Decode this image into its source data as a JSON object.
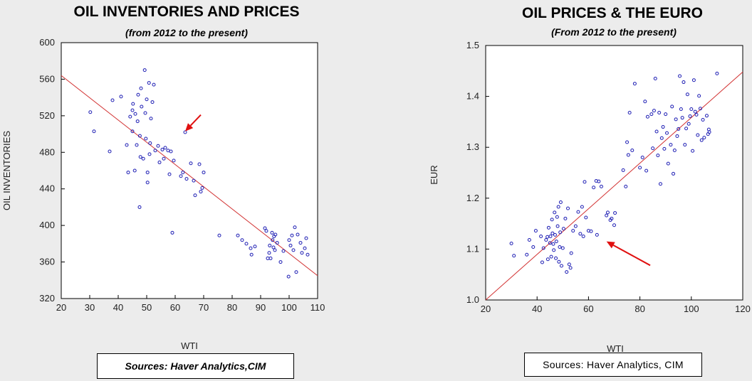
{
  "chart_data": [
    {
      "type": "scatter",
      "title": "OIL INVENTORIES AND PRICES",
      "subtitle": "(from 2012 to the present)",
      "xlabel": "WTI",
      "ylabel": "OIL INVENTORIES",
      "xlim": [
        20,
        110
      ],
      "ylim": [
        320,
        600
      ],
      "xticks": [
        "20",
        "30",
        "40",
        "50",
        "60",
        "70",
        "80",
        "90",
        "100",
        "110"
      ],
      "yticks": [
        "320",
        "360",
        "400",
        "440",
        "480",
        "520",
        "560",
        "600"
      ],
      "grid": false,
      "marker_color": "#1e1eb4",
      "fit_color": "#d23232",
      "arrow_color": "#e01010",
      "fit_line": [
        [
          20,
          564
        ],
        [
          110,
          345
        ]
      ],
      "arrow": {
        "from": [
          69,
          521
        ],
        "to": [
          63.5,
          503
        ]
      },
      "source": "Sources:  Haver Analytics,CIM",
      "points": [
        [
          30.2,
          524
        ],
        [
          31.5,
          503
        ],
        [
          37,
          481
        ],
        [
          38,
          537
        ],
        [
          41,
          541
        ],
        [
          43,
          488
        ],
        [
          43.5,
          458
        ],
        [
          44.2,
          519
        ],
        [
          45,
          526
        ],
        [
          45,
          503
        ],
        [
          45.2,
          533
        ],
        [
          45.8,
          460
        ],
        [
          46,
          522
        ],
        [
          46.5,
          488
        ],
        [
          46.8,
          514
        ],
        [
          47,
          543
        ],
        [
          47.5,
          420
        ],
        [
          47.6,
          498
        ],
        [
          47.8,
          475
        ],
        [
          48,
          550
        ],
        [
          48.2,
          530
        ],
        [
          48.8,
          473
        ],
        [
          49.3,
          570
        ],
        [
          49.5,
          523
        ],
        [
          49.7,
          495
        ],
        [
          50,
          538
        ],
        [
          50.3,
          458
        ],
        [
          50.3,
          447
        ],
        [
          50.8,
          556
        ],
        [
          51,
          478
        ],
        [
          51.2,
          490
        ],
        [
          51.5,
          517
        ],
        [
          52,
          535
        ],
        [
          52.5,
          554
        ],
        [
          53,
          482
        ],
        [
          54,
          487
        ],
        [
          54.5,
          469
        ],
        [
          55.5,
          483
        ],
        [
          56,
          473
        ],
        [
          56.5,
          485
        ],
        [
          57.5,
          482
        ],
        [
          58,
          456
        ],
        [
          58.5,
          481
        ],
        [
          59,
          392
        ],
        [
          59.5,
          471
        ],
        [
          62,
          454
        ],
        [
          62.7,
          458
        ],
        [
          63.5,
          502
        ],
        [
          64,
          451
        ],
        [
          65.5,
          468
        ],
        [
          66.5,
          449
        ],
        [
          67,
          433
        ],
        [
          68.5,
          467
        ],
        [
          69,
          437
        ],
        [
          69.5,
          441
        ],
        [
          70,
          458
        ],
        [
          75.5,
          389
        ],
        [
          82,
          389
        ],
        [
          83.5,
          384
        ],
        [
          85,
          380
        ],
        [
          86.5,
          375
        ],
        [
          86.8,
          368
        ],
        [
          88,
          377
        ],
        [
          91.5,
          397
        ],
        [
          92,
          394
        ],
        [
          92.5,
          364
        ],
        [
          93,
          370
        ],
        [
          93.2,
          378
        ],
        [
          93.5,
          364
        ],
        [
          94,
          392
        ],
        [
          94.2,
          384
        ],
        [
          94.5,
          376
        ],
        [
          94.7,
          388
        ],
        [
          95,
          373
        ],
        [
          95.2,
          390
        ],
        [
          95.8,
          381
        ],
        [
          97,
          360
        ],
        [
          98,
          372
        ],
        [
          99.8,
          344
        ],
        [
          100,
          384
        ],
        [
          100.5,
          378
        ],
        [
          101,
          389
        ],
        [
          101.5,
          373
        ],
        [
          102,
          398
        ],
        [
          102.5,
          349
        ],
        [
          103,
          390
        ],
        [
          104,
          381
        ],
        [
          104.5,
          370
        ],
        [
          105.5,
          375
        ],
        [
          106,
          386
        ],
        [
          106.5,
          368
        ]
      ]
    },
    {
      "type": "scatter",
      "title": "OIL PRICES & THE EURO",
      "subtitle": "(From 2012 to the present)",
      "xlabel": "WTI",
      "ylabel": "EUR",
      "xlim": [
        20,
        120
      ],
      "ylim": [
        1.0,
        1.5
      ],
      "xticks": [
        "20",
        "40",
        "60",
        "80",
        "100",
        "120"
      ],
      "yticks": [
        "1.0",
        "1.1",
        "1.2",
        "1.3",
        "1.4",
        "1.5"
      ],
      "grid": false,
      "marker_color": "#1e1eb4",
      "fit_color": "#d23232",
      "arrow_color": "#e01010",
      "fit_line": [
        [
          20,
          1.0
        ],
        [
          120,
          1.448
        ]
      ],
      "arrow": {
        "from": [
          84,
          1.068
        ],
        "to": [
          67,
          1.115
        ]
      },
      "source": "Sources:  Haver Analytics, CIM",
      "points": [
        [
          30,
          1.111
        ],
        [
          31,
          1.087
        ],
        [
          36,
          1.089
        ],
        [
          37,
          1.118
        ],
        [
          38.5,
          1.104
        ],
        [
          39.5,
          1.136
        ],
        [
          41.5,
          1.125
        ],
        [
          42,
          1.074
        ],
        [
          42.5,
          1.102
        ],
        [
          43.5,
          1.118
        ],
        [
          44,
          1.124
        ],
        [
          44.2,
          1.08
        ],
        [
          44.5,
          1.142
        ],
        [
          45,
          1.112
        ],
        [
          45.2,
          1.125
        ],
        [
          45.5,
          1.085
        ],
        [
          45.8,
          1.158
        ],
        [
          46,
          1.131
        ],
        [
          46.3,
          1.11
        ],
        [
          46.5,
          1.098
        ],
        [
          46.8,
          1.172
        ],
        [
          47,
          1.128
        ],
        [
          47.3,
          1.082
        ],
        [
          47.5,
          1.115
        ],
        [
          47.8,
          1.163
        ],
        [
          48,
          1.145
        ],
        [
          48.3,
          1.183
        ],
        [
          48.5,
          1.075
        ],
        [
          48.8,
          1.104
        ],
        [
          49,
          1.133
        ],
        [
          49.2,
          1.192
        ],
        [
          49.5,
          1.067
        ],
        [
          50,
          1.102
        ],
        [
          50.3,
          1.14
        ],
        [
          51,
          1.16
        ],
        [
          51.5,
          1.055
        ],
        [
          52,
          1.18
        ],
        [
          52.5,
          1.07
        ],
        [
          53,
          1.063
        ],
        [
          53.3,
          1.092
        ],
        [
          54,
          1.136
        ],
        [
          55,
          1.145
        ],
        [
          56,
          1.173
        ],
        [
          56.8,
          1.13
        ],
        [
          57.5,
          1.183
        ],
        [
          58,
          1.125
        ],
        [
          58.5,
          1.232
        ],
        [
          59,
          1.162
        ],
        [
          60,
          1.136
        ],
        [
          61,
          1.135
        ],
        [
          62,
          1.221
        ],
        [
          63,
          1.234
        ],
        [
          63.3,
          1.128
        ],
        [
          64,
          1.233
        ],
        [
          65,
          1.223
        ],
        [
          67,
          1.166
        ],
        [
          67.5,
          1.172
        ],
        [
          68.5,
          1.157
        ],
        [
          69,
          1.16
        ],
        [
          70,
          1.147
        ],
        [
          70.3,
          1.171
        ],
        [
          73.5,
          1.255
        ],
        [
          74.5,
          1.223
        ],
        [
          75,
          1.31
        ],
        [
          75.5,
          1.285
        ],
        [
          76,
          1.368
        ],
        [
          77,
          1.294
        ],
        [
          78,
          1.425
        ],
        [
          80,
          1.26
        ],
        [
          81,
          1.28
        ],
        [
          82,
          1.39
        ],
        [
          82.5,
          1.254
        ],
        [
          83,
          1.36
        ],
        [
          84.5,
          1.365
        ],
        [
          85,
          1.298
        ],
        [
          85.5,
          1.372
        ],
        [
          86,
          1.435
        ],
        [
          86.5,
          1.331
        ],
        [
          87,
          1.284
        ],
        [
          87.5,
          1.368
        ],
        [
          88,
          1.228
        ],
        [
          88.5,
          1.318
        ],
        [
          89,
          1.34
        ],
        [
          89.5,
          1.297
        ],
        [
          90,
          1.365
        ],
        [
          90.5,
          1.328
        ],
        [
          91,
          1.268
        ],
        [
          92,
          1.305
        ],
        [
          92.5,
          1.38
        ],
        [
          93,
          1.248
        ],
        [
          93.5,
          1.294
        ],
        [
          94,
          1.355
        ],
        [
          94.5,
          1.322
        ],
        [
          95,
          1.336
        ],
        [
          95.5,
          1.44
        ],
        [
          96,
          1.375
        ],
        [
          96.5,
          1.358
        ],
        [
          97,
          1.428
        ],
        [
          97.5,
          1.305
        ],
        [
          98,
          1.337
        ],
        [
          98.5,
          1.404
        ],
        [
          99,
          1.346
        ],
        [
          99.5,
          1.361
        ],
        [
          100,
          1.375
        ],
        [
          100.5,
          1.293
        ],
        [
          101,
          1.432
        ],
        [
          101.5,
          1.37
        ],
        [
          102,
          1.364
        ],
        [
          102.5,
          1.324
        ],
        [
          103,
          1.401
        ],
        [
          103.5,
          1.376
        ],
        [
          104,
          1.314
        ],
        [
          104.5,
          1.354
        ],
        [
          105,
          1.319
        ],
        [
          106,
          1.362
        ],
        [
          106.5,
          1.326
        ],
        [
          106.8,
          1.335
        ],
        [
          107,
          1.33
        ],
        [
          110,
          1.445
        ]
      ]
    }
  ]
}
